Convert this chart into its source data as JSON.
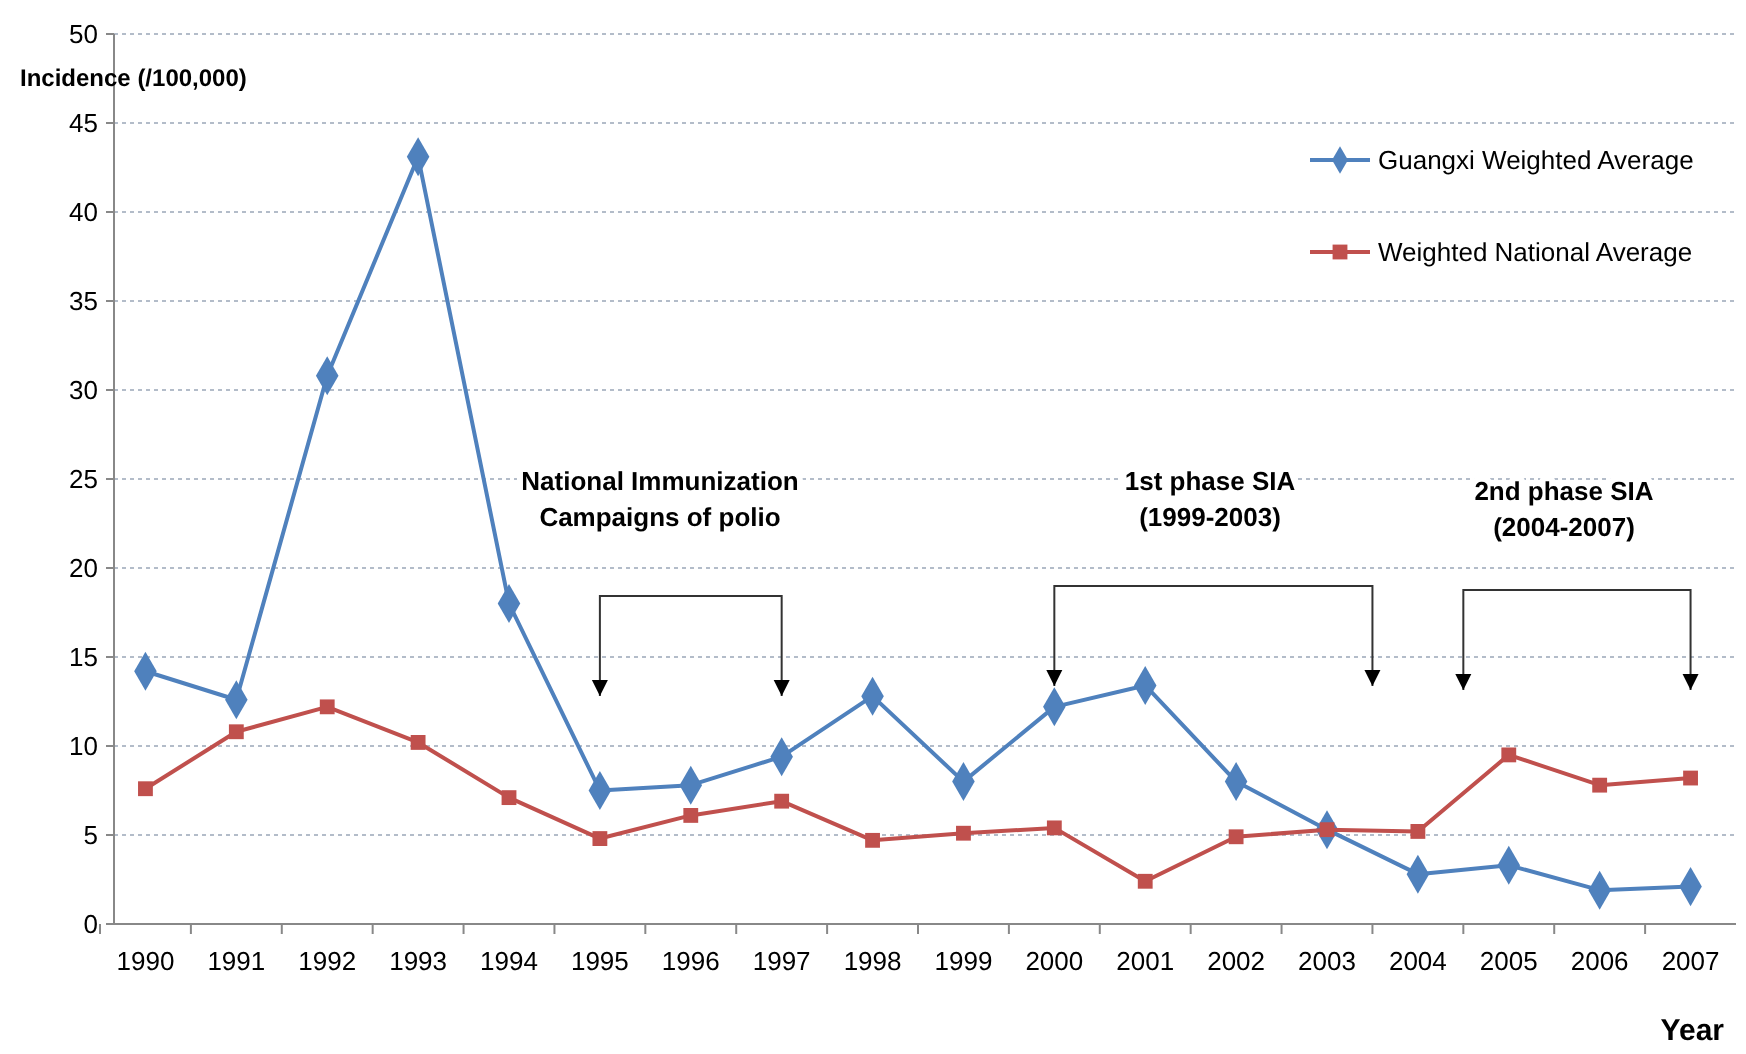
{
  "chart_data": {
    "type": "line",
    "xlabel": "Year",
    "ylabel": "Incidence (/100,000)",
    "categories": [
      "1990",
      "1991",
      "1992",
      "1993",
      "1994",
      "1995",
      "1996",
      "1997",
      "1998",
      "1999",
      "2000",
      "2001",
      "2002",
      "2003",
      "2004",
      "2005",
      "2006",
      "2007"
    ],
    "series": [
      {
        "name": "Guangxi Weighted Average",
        "color": "#4f81bd",
        "marker": "diamond",
        "values": [
          14.2,
          12.6,
          30.8,
          43.1,
          18.0,
          7.5,
          7.8,
          9.4,
          12.8,
          8.0,
          12.2,
          13.4,
          8.0,
          5.3,
          2.8,
          3.3,
          1.9,
          2.1
        ]
      },
      {
        "name": "Weighted National Average",
        "color": "#c0504d",
        "marker": "square",
        "values": [
          7.6,
          10.8,
          12.2,
          10.2,
          7.1,
          4.8,
          6.1,
          6.9,
          4.7,
          5.1,
          5.4,
          2.4,
          4.9,
          5.3,
          5.2,
          9.5,
          7.8,
          8.2
        ]
      }
    ],
    "ylim": [
      0,
      50
    ],
    "yticks": [
      0,
      5,
      10,
      15,
      20,
      25,
      30,
      35,
      40,
      45,
      50
    ],
    "grid": "y",
    "legend": "top right",
    "line_style": "solid",
    "annotations": [
      "National Immunization\nCampaigns of polio",
      "1st phase SIA\n(1999-2003)",
      "2nd phase SIA\n(2004-2007)"
    ]
  }
}
